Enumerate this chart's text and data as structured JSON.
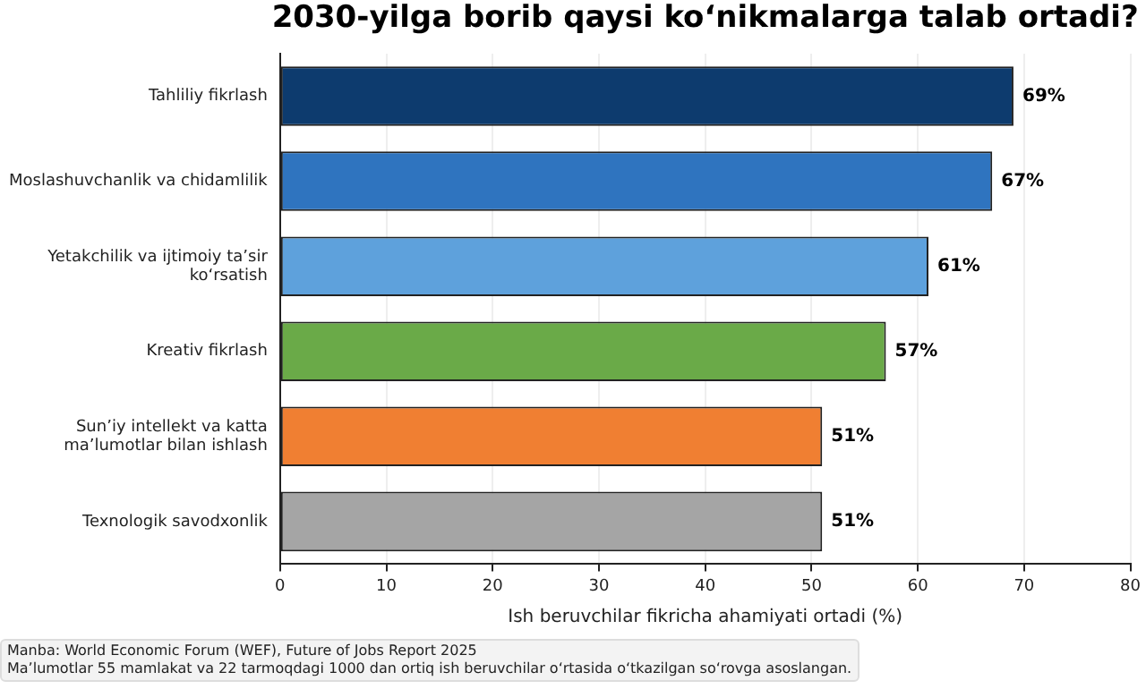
{
  "chart_data": {
    "type": "bar",
    "orientation": "horizontal",
    "title": "2030-yilga borib qaysi koʻnikmalarga talab ortadi?",
    "categories": [
      "Tahliliy fikrlash",
      "Moslashuvchanlik va chidamlilik",
      "Yetakchilik va ijtimoiy ta’sir\nko‘rsatish",
      "Kreativ fikrlash",
      "Sun’iy intellekt va katta\nma’lumotlar bilan ishlash",
      "Texnologik savodxonlik"
    ],
    "values": [
      69,
      67,
      61,
      57,
      51,
      51
    ],
    "colors": [
      "#0d3b6e",
      "#2f74bf",
      "#5ea1dc",
      "#6aaa48",
      "#f07f32",
      "#a5a5a5"
    ],
    "value_labels": [
      "69%",
      "67%",
      "61%",
      "57%",
      "51%",
      "51%"
    ],
    "xlabel": "Ish beruvchilar fikricha ahamiyati ortadi (%)",
    "xlim": [
      0,
      80
    ],
    "xticks": [
      0,
      10,
      20,
      30,
      40,
      50,
      60,
      70,
      80
    ],
    "grid": "x",
    "legend": false,
    "annotations": [
      "Manba: World Economic Forum (WEF), Future of Jobs Report 2025",
      "Ma’lumotlar 55 mamlakat va 22 tarmoqdagi 1000 dan ortiq ish beruvchilar o‘rtasida o‘tkazilgan so‘rovga asoslangan."
    ]
  }
}
